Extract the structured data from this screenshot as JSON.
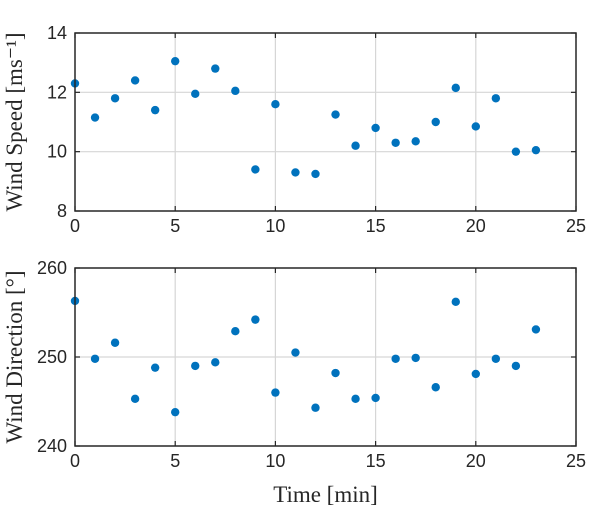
{
  "colors": {
    "marker": "#0072bd",
    "axis": "#262626",
    "grid": "#d6d6d6"
  },
  "xlabel": "Time [min]",
  "chart_data": [
    {
      "type": "scatter",
      "ylabel": "Wind Speed [ms⁻¹]",
      "xlim": [
        0,
        25
      ],
      "ylim": [
        8,
        14
      ],
      "xticks": [
        0,
        5,
        10,
        15,
        20,
        25
      ],
      "yticks": [
        8,
        10,
        12,
        14
      ],
      "grid": true,
      "x": [
        0,
        1,
        2,
        3,
        4,
        5,
        6,
        7,
        8,
        9,
        10,
        11,
        12,
        13,
        14,
        15,
        16,
        17,
        18,
        19,
        20,
        21,
        22,
        23
      ],
      "y": [
        12.3,
        11.15,
        11.8,
        12.4,
        11.4,
        13.05,
        11.95,
        12.8,
        12.05,
        9.4,
        11.6,
        9.3,
        9.25,
        11.25,
        10.2,
        10.8,
        10.3,
        10.35,
        11.0,
        12.15,
        10.85,
        11.8,
        10.0,
        10.05
      ]
    },
    {
      "type": "scatter",
      "ylabel": "Wind Direction [°]",
      "xlabel": "Time [min]",
      "xlim": [
        0,
        25
      ],
      "ylim": [
        240,
        260
      ],
      "xticks": [
        0,
        5,
        10,
        15,
        20,
        25
      ],
      "yticks": [
        240,
        250,
        260
      ],
      "grid": true,
      "x": [
        0,
        1,
        2,
        3,
        4,
        5,
        6,
        7,
        8,
        9,
        10,
        11,
        12,
        13,
        14,
        15,
        16,
        17,
        18,
        19,
        20,
        21,
        22,
        23
      ],
      "y": [
        256.3,
        249.8,
        251.6,
        245.3,
        248.8,
        243.8,
        249.0,
        249.4,
        252.9,
        254.2,
        246.0,
        250.5,
        244.3,
        248.2,
        245.3,
        245.4,
        249.8,
        249.9,
        246.6,
        256.2,
        248.1,
        249.8,
        249.0,
        253.1
      ]
    }
  ]
}
